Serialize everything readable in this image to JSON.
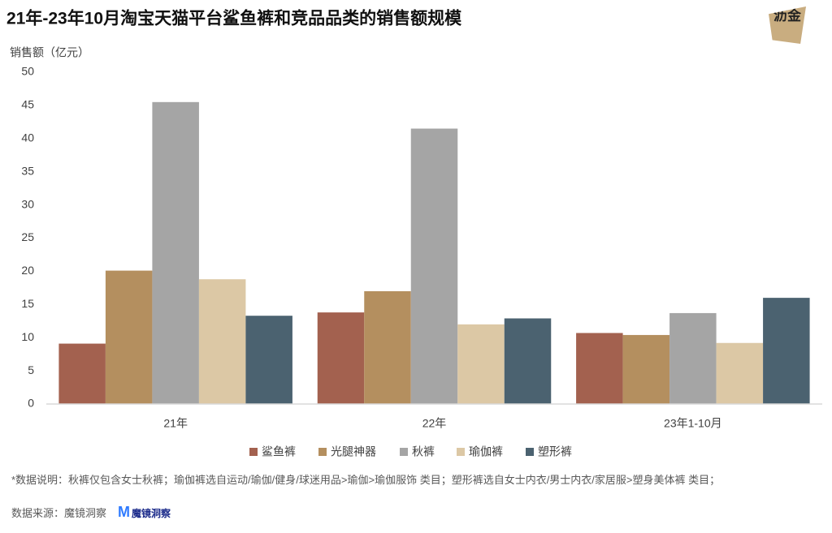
{
  "chart_data": {
    "type": "bar",
    "title": "21年-23年10月淘宝天猫平台鲨鱼裤和竞品品类的销售额规模",
    "y_label": "销售额（亿元）",
    "categories": [
      "21年",
      "22年",
      "23年1-10月"
    ],
    "series": [
      {
        "name": "鲨鱼裤",
        "color": "#a3614f",
        "values": [
          9.1,
          13.8,
          10.7
        ]
      },
      {
        "name": "光腿神器",
        "color": "#b48f5f",
        "values": [
          20.1,
          17.0,
          10.4
        ]
      },
      {
        "name": "秋裤",
        "color": "#a5a5a5",
        "values": [
          45.5,
          41.5,
          13.7
        ]
      },
      {
        "name": "瑜伽裤",
        "color": "#dcc8a5",
        "values": [
          18.8,
          12.0,
          9.2
        ]
      },
      {
        "name": "塑形裤",
        "color": "#4b6270",
        "values": [
          13.3,
          12.9,
          16.0
        ]
      }
    ],
    "ylim": [
      0,
      50
    ],
    "yticks": [
      0,
      5,
      10,
      15,
      20,
      25,
      30,
      35,
      40,
      45,
      50
    ],
    "grid": false,
    "legend": "bottom",
    "note": "*数据说明：秋裤仅包含女士秋裤；瑜伽裤选自运动/瑜伽/健身/球迷用品>瑜伽>瑜伽服饰 类目；塑形裤选自女士内衣/男士内衣/家居服>塑身美体裤 类目；",
    "source": "数据来源：魔镜洞察",
    "source_brand": "魔镜洞察",
    "logo": "沥金"
  }
}
